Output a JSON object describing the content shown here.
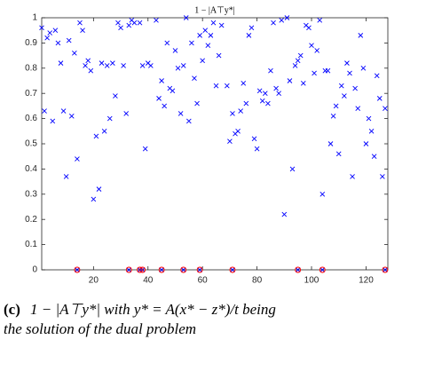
{
  "chart_data": {
    "type": "scatter",
    "title": "1 − |A⊤y*|",
    "xlim": [
      1,
      128
    ],
    "xticks": [
      20,
      40,
      60,
      80,
      100,
      120
    ],
    "ylim": [
      0,
      1
    ],
    "yticks": [
      0,
      0.1,
      0.2,
      0.3,
      0.4,
      0.5,
      0.6,
      0.7,
      0.8,
      0.9,
      1
    ],
    "series": [
      {
        "color": "#0000ff",
        "marker": "x",
        "x": [
          1,
          2,
          3,
          4,
          5,
          6,
          7,
          8,
          9,
          10,
          11,
          12,
          13,
          14,
          15,
          16,
          17,
          18,
          19,
          20,
          21,
          22,
          23,
          24,
          25,
          26,
          27,
          28,
          29,
          30,
          31,
          32,
          33,
          34,
          35,
          37,
          38,
          39,
          40,
          41,
          43,
          44,
          45,
          46,
          47,
          48,
          49,
          50,
          51,
          52,
          53,
          54,
          55,
          56,
          57,
          58,
          59,
          60,
          61,
          62,
          63,
          64,
          65,
          66,
          67,
          69,
          70,
          71,
          72,
          73,
          74,
          75,
          76,
          77,
          78,
          79,
          80,
          81,
          82,
          83,
          84,
          85,
          86,
          87,
          88,
          89,
          90,
          91,
          92,
          93,
          94,
          95,
          96,
          97,
          98,
          99,
          100,
          101,
          102,
          103,
          104,
          105,
          106,
          107,
          108,
          109,
          110,
          111,
          112,
          113,
          114,
          115,
          116,
          117,
          118,
          119,
          120,
          121,
          122,
          123,
          124,
          125,
          126,
          127,
          14,
          33,
          37,
          38,
          45,
          53,
          59,
          71,
          95,
          104,
          127
        ],
        "values": [
          0.96,
          0.63,
          0.92,
          0.94,
          0.59,
          0.95,
          0.9,
          0.82,
          0.63,
          0.37,
          0.91,
          0.61,
          0.86,
          0.44,
          0.98,
          0.95,
          0.81,
          0.83,
          0.79,
          0.28,
          0.53,
          0.32,
          0.82,
          0.55,
          0.81,
          0.6,
          0.82,
          0.69,
          0.98,
          0.96,
          0.81,
          0.62,
          0.97,
          0.99,
          0.98,
          0.98,
          0.81,
          0.48,
          0.82,
          0.81,
          0.99,
          0.68,
          0.75,
          0.65,
          0.9,
          0.72,
          0.71,
          0.87,
          0.8,
          0.62,
          0.81,
          1,
          0.59,
          0.9,
          0.76,
          0.66,
          0.93,
          0.83,
          0.95,
          0.89,
          0.93,
          0.98,
          0.73,
          0.85,
          0.97,
          0.73,
          0.51,
          0.62,
          0.54,
          0.55,
          0.63,
          0.74,
          0.66,
          0.93,
          0.96,
          0.52,
          0.48,
          0.71,
          0.67,
          0.7,
          0.66,
          0.79,
          0.98,
          0.72,
          0.7,
          0.99,
          0.22,
          1,
          0.75,
          0.4,
          0.81,
          0.83,
          0.85,
          0.74,
          0.97,
          0.96,
          0.89,
          0.78,
          0.87,
          0.99,
          0.3,
          0.79,
          0.79,
          0.5,
          0.61,
          0.65,
          0.46,
          0.73,
          0.69,
          0.82,
          0.78,
          0.37,
          0.72,
          0.64,
          0.93,
          0.8,
          0.5,
          0.6,
          0.55,
          0.45,
          0.77,
          0.68,
          0.37,
          0.64,
          0,
          0,
          0,
          0,
          0,
          0,
          0,
          0,
          0,
          0,
          0
        ]
      },
      {
        "color": "#ff0000",
        "marker": "o",
        "x": [
          14,
          33,
          37,
          38,
          45,
          53,
          59,
          71,
          95,
          104,
          127
        ],
        "values": [
          0,
          0,
          0,
          0,
          0,
          0,
          0,
          0,
          0,
          0,
          0
        ]
      }
    ],
    "caption_label": "(c)",
    "caption_line1": "1 − |A⊤y*| with y* = A(x* − z*)/t being",
    "caption_line2": "the solution of the dual problem"
  }
}
